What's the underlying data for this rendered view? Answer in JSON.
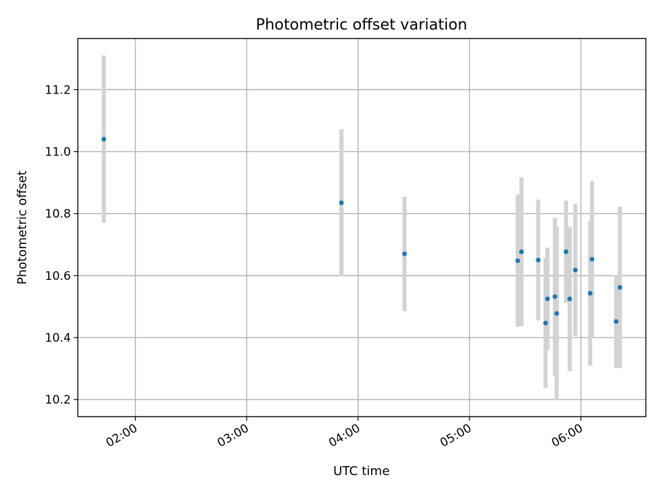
{
  "chart_data": {
    "type": "scatter",
    "title": "Photometric offset variation",
    "xlabel": "UTC time",
    "ylabel": "Photometric offset",
    "x_ticks": [
      "02:00",
      "03:00",
      "04:00",
      "05:00",
      "06:00"
    ],
    "y_ticks": [
      "10.2",
      "10.4",
      "10.6",
      "10.8",
      "11.0",
      "11.2"
    ],
    "xlim": [
      "01:29",
      "06:35"
    ],
    "ylim": [
      10.145,
      11.365
    ],
    "grid": true,
    "colors": {
      "point": "#1f77b4",
      "errorbar": "#d3d3d3"
    },
    "points": [
      {
        "x": "01:43",
        "y": 11.04,
        "err": 0.27
      },
      {
        "x": "03:51",
        "y": 10.835,
        "err": 0.237
      },
      {
        "x": "04:25",
        "y": 10.67,
        "err": 0.185
      },
      {
        "x": "05:26",
        "y": 10.648,
        "err": 0.213
      },
      {
        "x": "05:28",
        "y": 10.677,
        "err": 0.24
      },
      {
        "x": "05:37",
        "y": 10.65,
        "err": 0.195
      },
      {
        "x": "05:41",
        "y": 10.447,
        "err": 0.21
      },
      {
        "x": "05:42",
        "y": 10.525,
        "err": 0.165
      },
      {
        "x": "05:46",
        "y": 10.532,
        "err": 0.255
      },
      {
        "x": "05:47",
        "y": 10.478,
        "err": 0.28
      },
      {
        "x": "05:52",
        "y": 10.677,
        "err": 0.165
      },
      {
        "x": "05:54",
        "y": 10.525,
        "err": 0.233
      },
      {
        "x": "05:57",
        "y": 10.618,
        "err": 0.213
      },
      {
        "x": "06:05",
        "y": 10.543,
        "err": 0.233
      },
      {
        "x": "06:06",
        "y": 10.653,
        "err": 0.253
      },
      {
        "x": "06:19",
        "y": 10.452,
        "err": 0.15
      },
      {
        "x": "06:21",
        "y": 10.562,
        "err": 0.26
      }
    ]
  }
}
